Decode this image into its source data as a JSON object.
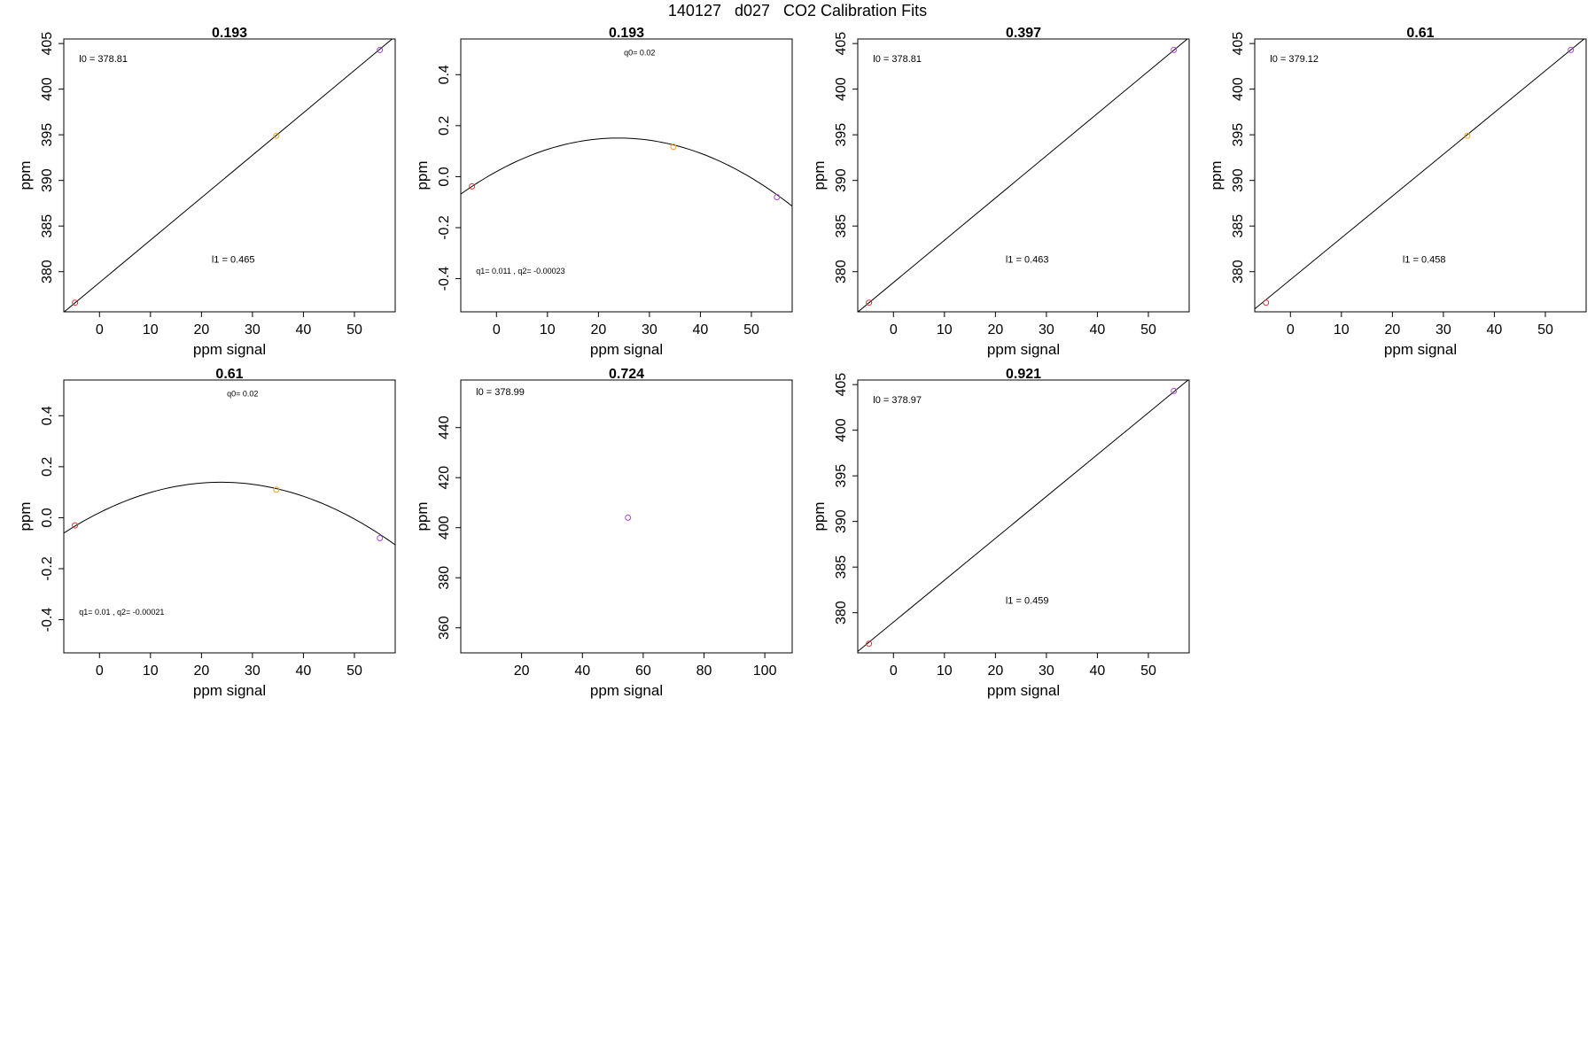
{
  "page_title": "140127   d027   CO2 Calibration Fits",
  "colors": {
    "axis": "#000000",
    "fit_line": "#000000",
    "point_red": "#e03030",
    "point_orange": "#f0a020",
    "point_purple": "#b040e0"
  },
  "chart_data": [
    {
      "type": "scatter",
      "title": "0.193",
      "xlabel": "ppm signal",
      "ylabel": "ppm",
      "xlim": [
        -7,
        58
      ],
      "ylim": [
        375.6,
        405.5
      ],
      "xticks": [
        0,
        10,
        20,
        30,
        40,
        50
      ],
      "yticks": [
        380,
        385,
        390,
        395,
        400,
        405
      ],
      "fit": {
        "kind": "linear",
        "intercept": 378.81,
        "slope": 0.465
      },
      "points": [
        {
          "x": -4.8,
          "y": 376.6,
          "color": "#e03030"
        },
        {
          "x": 34.7,
          "y": 394.9,
          "color": "#f0a020"
        },
        {
          "x": 55.0,
          "y": 404.3,
          "color": "#b040e0"
        }
      ],
      "annotations": [
        {
          "text": "l0 =  378.81",
          "x": -4,
          "y": 403.0,
          "size": 11
        },
        {
          "text": "l1 =  0.465",
          "x": 22,
          "y": 381.0,
          "size": 11
        }
      ]
    },
    {
      "type": "scatter",
      "title": "0.193",
      "xlabel": "ppm signal",
      "ylabel": "ppm",
      "xlim": [
        -7,
        58
      ],
      "ylim": [
        -0.53,
        0.54
      ],
      "xticks": [
        0,
        10,
        20,
        30,
        40,
        50
      ],
      "yticks": [
        -0.4,
        -0.2,
        0.0,
        0.2,
        0.4
      ],
      "fit": {
        "kind": "quadratic",
        "q0": 0.02,
        "q1": 0.011,
        "q2": -0.00023
      },
      "points": [
        {
          "x": -4.8,
          "y": -0.038,
          "color": "#e03030"
        },
        {
          "x": 34.7,
          "y": 0.117,
          "color": "#f0a020"
        },
        {
          "x": 55.0,
          "y": -0.08,
          "color": "#b040e0"
        }
      ],
      "annotations": [
        {
          "text": "q0= 0.02",
          "x": 25,
          "y": 0.475,
          "size": 9
        },
        {
          "text": "q1= 0.011 , q2= -0.00023",
          "x": -4,
          "y": -0.38,
          "size": 9
        }
      ]
    },
    {
      "type": "scatter",
      "title": "0.397",
      "xlabel": "ppm signal",
      "ylabel": "ppm",
      "xlim": [
        -7,
        58
      ],
      "ylim": [
        375.6,
        405.5
      ],
      "xticks": [
        0,
        10,
        20,
        30,
        40,
        50
      ],
      "yticks": [
        380,
        385,
        390,
        395,
        400,
        405
      ],
      "fit": {
        "kind": "linear",
        "intercept": 378.81,
        "slope": 0.463
      },
      "points": [
        {
          "x": -4.8,
          "y": 376.6,
          "color": "#e03030"
        },
        {
          "x": 55.0,
          "y": 404.3,
          "color": "#b040e0"
        }
      ],
      "annotations": [
        {
          "text": "l0 =  378.81",
          "x": -4,
          "y": 403.0,
          "size": 11
        },
        {
          "text": "l1 =  0.463",
          "x": 22,
          "y": 381.0,
          "size": 11
        }
      ]
    },
    {
      "type": "scatter",
      "title": "0.61",
      "xlabel": "ppm signal",
      "ylabel": "ppm",
      "xlim": [
        -7,
        58
      ],
      "ylim": [
        375.6,
        405.5
      ],
      "xticks": [
        0,
        10,
        20,
        30,
        40,
        50
      ],
      "yticks": [
        380,
        385,
        390,
        395,
        400,
        405
      ],
      "fit": {
        "kind": "linear",
        "intercept": 379.12,
        "slope": 0.458
      },
      "points": [
        {
          "x": -4.8,
          "y": 376.6,
          "color": "#e03030"
        },
        {
          "x": 34.7,
          "y": 394.9,
          "color": "#f0a020"
        },
        {
          "x": 55.0,
          "y": 404.3,
          "color": "#b040e0"
        }
      ],
      "annotations": [
        {
          "text": "l0 =  379.12",
          "x": -4,
          "y": 403.0,
          "size": 11
        },
        {
          "text": "l1 =  0.458",
          "x": 22,
          "y": 381.0,
          "size": 11
        }
      ]
    },
    {
      "type": "scatter",
      "title": "0.61",
      "xlabel": "ppm signal",
      "ylabel": "ppm",
      "xlim": [
        -7,
        58
      ],
      "ylim": [
        -0.53,
        0.54
      ],
      "xticks": [
        0,
        10,
        20,
        30,
        40,
        50
      ],
      "yticks": [
        -0.4,
        -0.2,
        0.0,
        0.2,
        0.4
      ],
      "fit": {
        "kind": "quadratic",
        "q0": 0.02,
        "q1": 0.01,
        "q2": -0.00021
      },
      "points": [
        {
          "x": -4.8,
          "y": -0.03,
          "color": "#e03030"
        },
        {
          "x": 34.7,
          "y": 0.11,
          "color": "#f0a020"
        },
        {
          "x": 55.0,
          "y": -0.08,
          "color": "#b040e0"
        }
      ],
      "annotations": [
        {
          "text": "q0= 0.02",
          "x": 25,
          "y": 0.475,
          "size": 9
        },
        {
          "text": "q1= 0.01 , q2= -0.00021",
          "x": -4,
          "y": -0.38,
          "size": 9
        }
      ]
    },
    {
      "type": "scatter",
      "title": "0.724",
      "xlabel": "ppm signal",
      "ylabel": "ppm",
      "xlim": [
        0,
        109
      ],
      "ylim": [
        350,
        459
      ],
      "xticks": [
        20,
        40,
        60,
        80,
        100
      ],
      "yticks": [
        360,
        380,
        400,
        420,
        440
      ],
      "fit": {
        "kind": "none"
      },
      "points": [
        {
          "x": 55.0,
          "y": 404.0,
          "color": "#b040e0"
        }
      ],
      "annotations": [
        {
          "text": "l0 =  378.99",
          "x": 5,
          "y": 453,
          "size": 11
        }
      ]
    },
    {
      "type": "scatter",
      "title": "0.921",
      "xlabel": "ppm signal",
      "ylabel": "ppm",
      "xlim": [
        -7,
        58
      ],
      "ylim": [
        375.6,
        405.5
      ],
      "xticks": [
        0,
        10,
        20,
        30,
        40,
        50
      ],
      "yticks": [
        380,
        385,
        390,
        395,
        400,
        405
      ],
      "fit": {
        "kind": "linear",
        "intercept": 378.97,
        "slope": 0.459
      },
      "points": [
        {
          "x": -4.8,
          "y": 376.6,
          "color": "#e03030"
        },
        {
          "x": 55.0,
          "y": 404.3,
          "color": "#b040e0"
        }
      ],
      "annotations": [
        {
          "text": "l0 =  378.97",
          "x": -4,
          "y": 403.0,
          "size": 11
        },
        {
          "text": "l1 =  0.459",
          "x": 22,
          "y": 381.0,
          "size": 11
        }
      ]
    }
  ]
}
